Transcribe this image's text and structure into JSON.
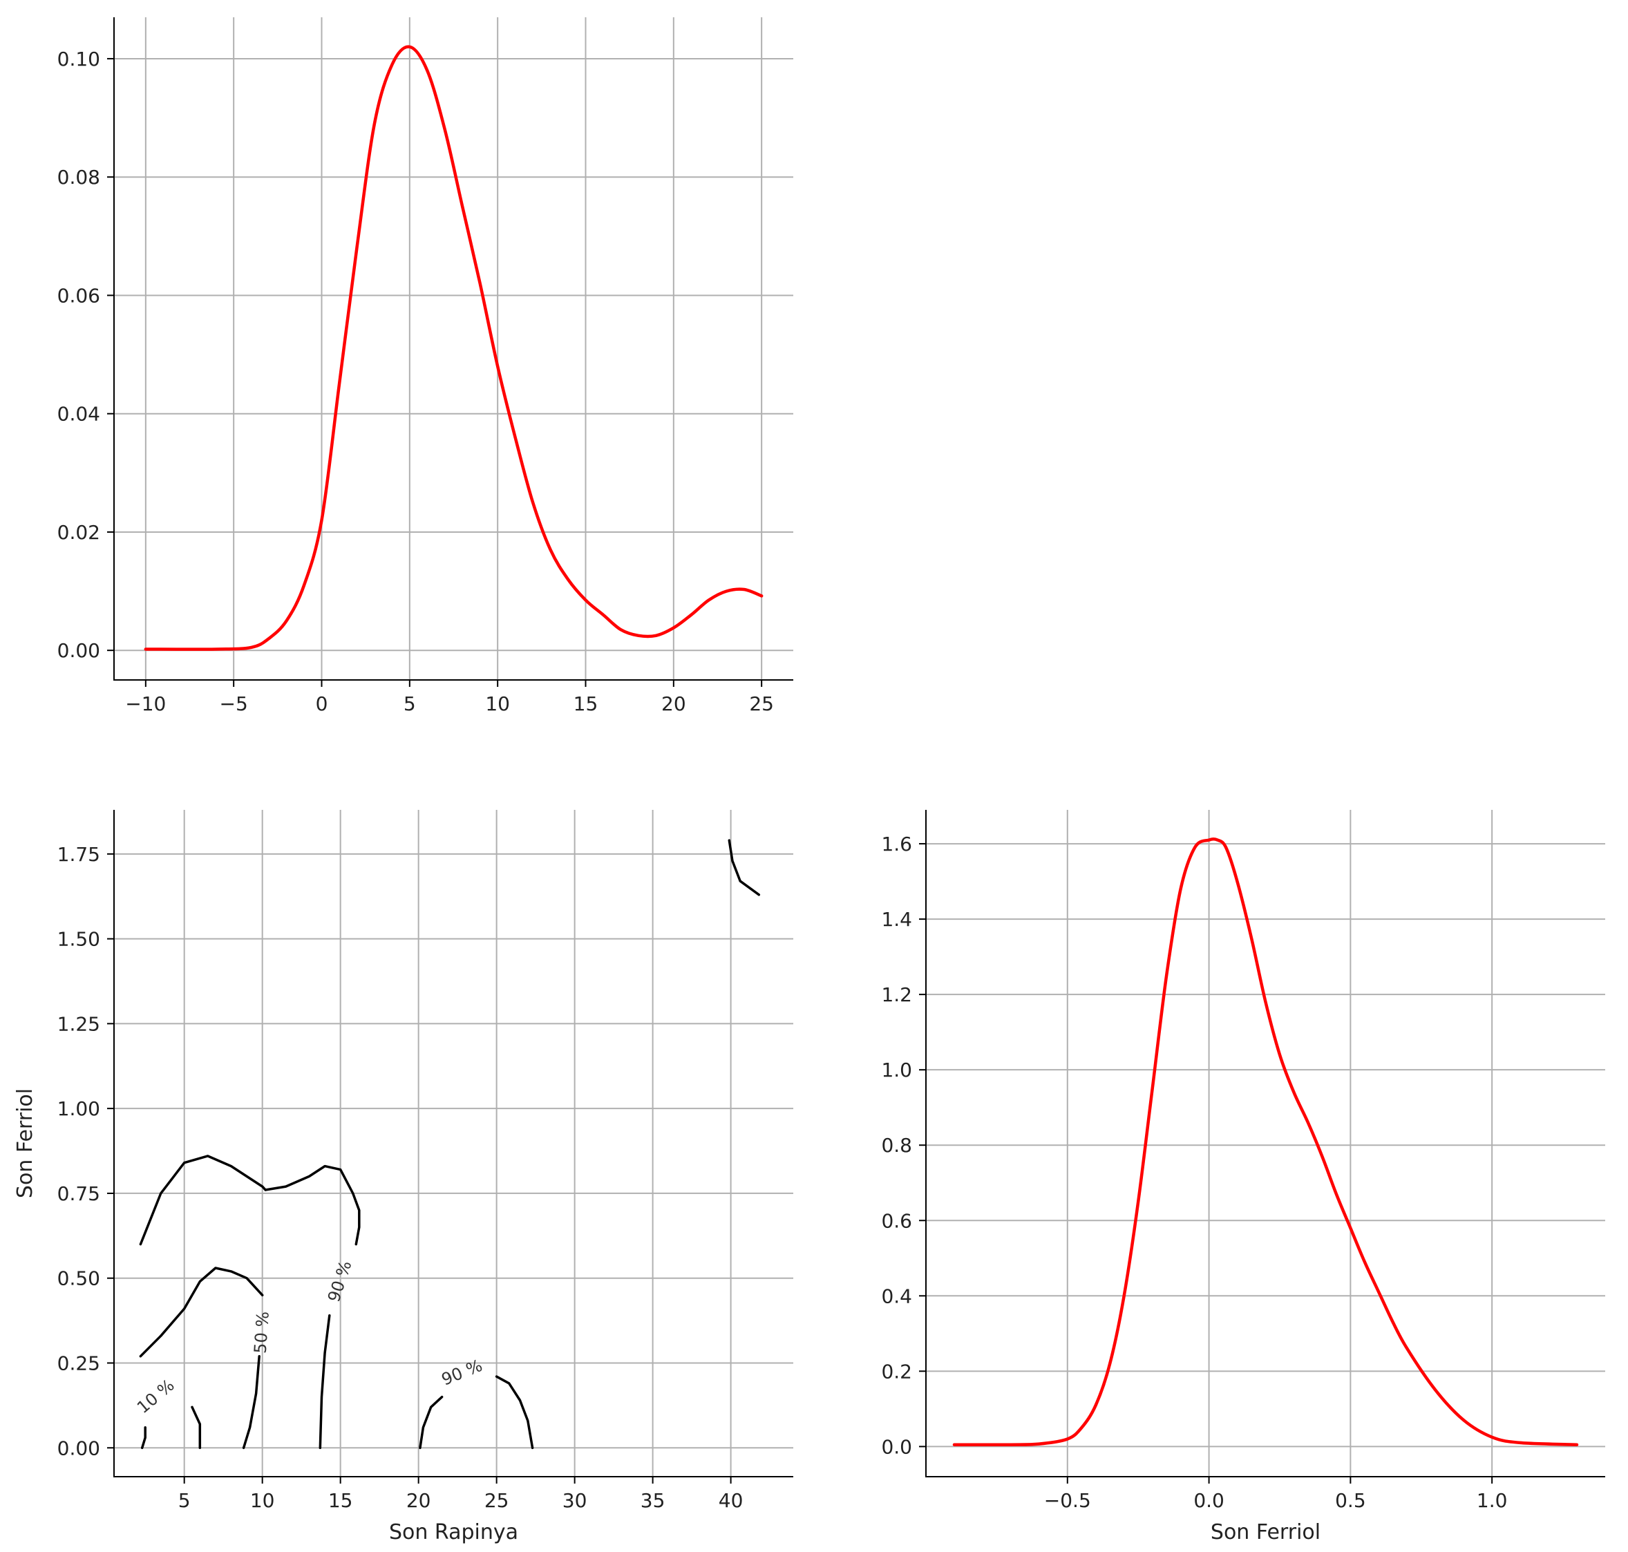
{
  "chart_data": [
    {
      "type": "line",
      "panel": "top-left",
      "xlabel": "",
      "ylabel": "",
      "xlim": [
        -11.8,
        26.8
      ],
      "ylim": [
        -0.005,
        0.107
      ],
      "xticks": [
        -10,
        -5,
        0,
        5,
        10,
        15,
        20,
        25
      ],
      "xtick_labels": [
        "−10",
        "−5",
        "0",
        "5",
        "10",
        "15",
        "20",
        "25"
      ],
      "yticks": [
        0.0,
        0.02,
        0.04,
        0.06,
        0.08,
        0.1
      ],
      "ytick_labels": [
        "0.00",
        "0.02",
        "0.04",
        "0.06",
        "0.08",
        "0.10"
      ],
      "grid": true,
      "color": "#ff0000",
      "series": [
        {
          "x": [
            -10,
            -6,
            -4,
            -3,
            -2,
            -1,
            0,
            1,
            2,
            3,
            4,
            5,
            6,
            7,
            8,
            9,
            10,
            11,
            12,
            13,
            14,
            15,
            16,
            17,
            18,
            19,
            20,
            21,
            22,
            23,
            24,
            25
          ],
          "values": [
            0.0002,
            0.0002,
            0.0005,
            0.002,
            0.005,
            0.011,
            0.022,
            0.045,
            0.068,
            0.089,
            0.099,
            0.102,
            0.098,
            0.088,
            0.075,
            0.062,
            0.048,
            0.036,
            0.025,
            0.017,
            0.012,
            0.0085,
            0.006,
            0.0035,
            0.0025,
            0.0025,
            0.0038,
            0.006,
            0.0085,
            0.01,
            0.0103,
            0.0092
          ]
        }
      ]
    },
    {
      "type": "contour",
      "panel": "bottom-left",
      "xlabel": "Son Rapinya",
      "ylabel": "Son Ferriol",
      "xlim": [
        0.5,
        44
      ],
      "ylim": [
        -0.085,
        1.88
      ],
      "xticks": [
        5,
        10,
        15,
        20,
        25,
        30,
        35,
        40
      ],
      "xtick_labels": [
        "5",
        "10",
        "15",
        "20",
        "25",
        "30",
        "35",
        "40"
      ],
      "yticks": [
        0.0,
        0.25,
        0.5,
        0.75,
        1.0,
        1.25,
        1.5,
        1.75
      ],
      "ytick_labels": [
        "0.00",
        "0.25",
        "0.50",
        "0.75",
        "1.00",
        "1.25",
        "1.50",
        "1.75"
      ],
      "grid": true,
      "color": "#000000",
      "levels": [
        {
          "label": "10 %",
          "label_at": [
            3.2,
            0.15
          ],
          "label_angle": -40
        },
        {
          "label": "50 %",
          "label_at": [
            10.0,
            0.34
          ],
          "label_angle": -86
        },
        {
          "label": "90 %",
          "label_at": [
            15.0,
            0.49
          ],
          "label_angle": -72
        },
        {
          "label": "90 %",
          "label_at": [
            22.8,
            0.22
          ],
          "label_angle": -22
        }
      ],
      "contours": [
        {
          "x": [
            2.3,
            2.5,
            2.5
          ],
          "y": [
            0.0,
            0.03,
            0.06
          ]
        },
        {
          "x": [
            5.5,
            6.0,
            6.0
          ],
          "y": [
            0.12,
            0.07,
            0.0
          ]
        },
        {
          "x": [
            2.2,
            3.5,
            5.0,
            6.5,
            8.0,
            9.0,
            10.0,
            10.2
          ],
          "y": [
            0.6,
            0.75,
            0.84,
            0.86,
            0.83,
            0.8,
            0.77,
            0.76
          ]
        },
        {
          "x": [
            10.2,
            11.5,
            13.0,
            14.0,
            15.0,
            15.8,
            16.2,
            16.2,
            16.0
          ],
          "y": [
            0.76,
            0.77,
            0.8,
            0.83,
            0.82,
            0.75,
            0.7,
            0.65,
            0.6
          ]
        },
        {
          "x": [
            2.2,
            3.5,
            5.0,
            6.0,
            7.0,
            8.0,
            9.0,
            10.0
          ],
          "y": [
            0.27,
            0.33,
            0.41,
            0.49,
            0.53,
            0.52,
            0.5,
            0.45
          ]
        },
        {
          "x": [
            9.8,
            9.6,
            9.2,
            8.8
          ],
          "y": [
            0.27,
            0.16,
            0.06,
            0.0
          ]
        },
        {
          "x": [
            14.3,
            14.0,
            13.8,
            13.7
          ],
          "y": [
            0.39,
            0.28,
            0.15,
            0.0
          ]
        },
        {
          "x": [
            20.1,
            20.3,
            20.8,
            21.5
          ],
          "y": [
            0.0,
            0.06,
            0.12,
            0.15
          ]
        },
        {
          "x": [
            25.0,
            25.8,
            26.5,
            27.0,
            27.3
          ],
          "y": [
            0.21,
            0.19,
            0.14,
            0.08,
            0.0
          ]
        },
        {
          "x": [
            39.9,
            40.1,
            40.6,
            41.8
          ],
          "y": [
            1.79,
            1.73,
            1.67,
            1.63
          ]
        }
      ]
    },
    {
      "type": "line",
      "panel": "bottom-right",
      "xlabel": "Son Ferriol",
      "ylabel": "",
      "xlim": [
        -1.0,
        1.4
      ],
      "ylim": [
        -0.08,
        1.69
      ],
      "xticks": [
        -0.5,
        0.0,
        0.5,
        1.0
      ],
      "xtick_labels": [
        "−0.5",
        "0.0",
        "0.5",
        "1.0"
      ],
      "yticks": [
        0.0,
        0.2,
        0.4,
        0.6,
        0.8,
        1.0,
        1.2,
        1.4,
        1.6
      ],
      "ytick_labels": [
        "0.0",
        "0.2",
        "0.4",
        "0.6",
        "0.8",
        "1.0",
        "1.2",
        "1.4",
        "1.6"
      ],
      "grid": true,
      "color": "#ff0000",
      "series": [
        {
          "x": [
            -0.9,
            -0.7,
            -0.6,
            -0.5,
            -0.45,
            -0.4,
            -0.35,
            -0.3,
            -0.25,
            -0.2,
            -0.15,
            -0.1,
            -0.05,
            0.0,
            0.03,
            0.06,
            0.1,
            0.15,
            0.2,
            0.25,
            0.3,
            0.35,
            0.4,
            0.45,
            0.5,
            0.55,
            0.6,
            0.65,
            0.7,
            0.8,
            0.9,
            1.0,
            1.1,
            1.3
          ],
          "values": [
            0.005,
            0.005,
            0.007,
            0.02,
            0.05,
            0.11,
            0.22,
            0.4,
            0.65,
            0.95,
            1.25,
            1.48,
            1.59,
            1.61,
            1.61,
            1.59,
            1.5,
            1.35,
            1.18,
            1.04,
            0.94,
            0.86,
            0.77,
            0.67,
            0.58,
            0.49,
            0.41,
            0.33,
            0.26,
            0.15,
            0.07,
            0.025,
            0.01,
            0.005
          ]
        }
      ]
    }
  ]
}
